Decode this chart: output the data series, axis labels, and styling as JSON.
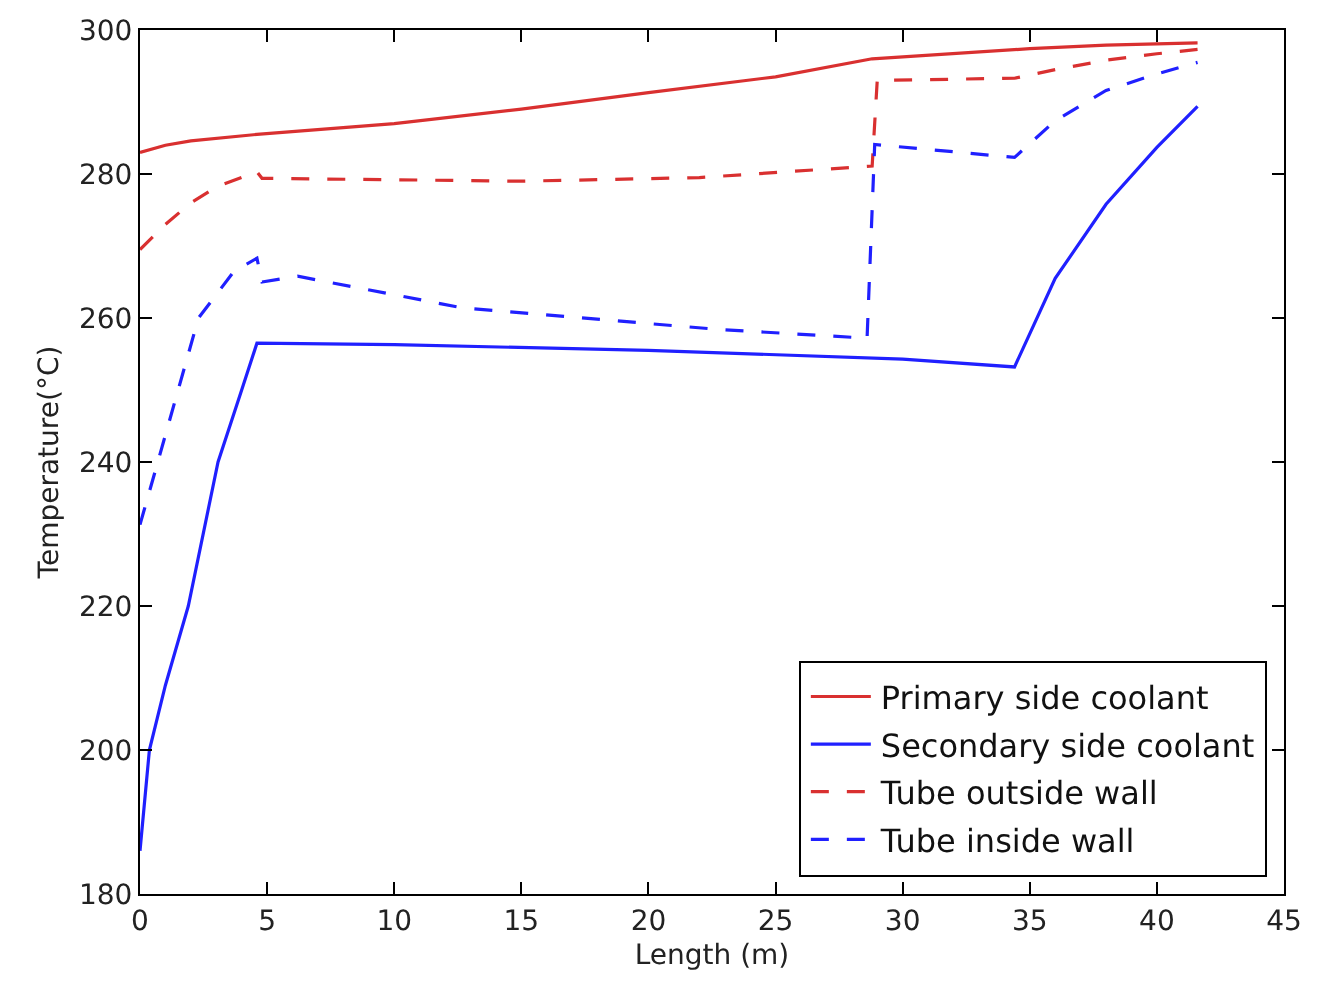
{
  "chart_data": {
    "type": "line",
    "xlabel": "Length (m)",
    "ylabel": "Temperature(°C)",
    "xlim": [
      0,
      45
    ],
    "ylim": [
      180,
      300
    ],
    "xticks": [
      0,
      5,
      10,
      15,
      20,
      25,
      30,
      35,
      40,
      45
    ],
    "yticks": [
      180,
      200,
      220,
      240,
      260,
      280,
      300
    ],
    "legend": "bottom right",
    "marker": "none",
    "series": [
      {
        "name": "Primary side coolant",
        "color": "#d93030",
        "line_style": "solid",
        "x": [
          0,
          1,
          2,
          4.6,
          10,
          15,
          20,
          25,
          28.8,
          35,
          38,
          41.6
        ],
        "values": [
          283,
          284,
          284.6,
          285.5,
          287,
          289,
          291.3,
          293.5,
          296,
          297.4,
          297.9,
          298.2
        ]
      },
      {
        "name": "Secondary side coolant",
        "color": "#2020ff",
        "line_style": "solid",
        "x": [
          0,
          0.37,
          1,
          1.9,
          3.07,
          4,
          4.6,
          10,
          20,
          30,
          34.4,
          36,
          38,
          40,
          41.6
        ],
        "values": [
          186,
          200,
          209,
          220,
          240,
          250,
          256.5,
          256.3,
          255.5,
          254.3,
          253.2,
          265.5,
          275.8,
          283.7,
          289.4
        ]
      },
      {
        "name": "Tube outside wall",
        "color": "#d93030",
        "line_style": "dashed",
        "x": [
          0,
          1,
          2,
          3,
          4.6,
          4.8,
          10,
          15,
          22,
          28.8,
          29,
          34.4,
          36,
          38,
          40,
          41.6
        ],
        "values": [
          269.5,
          273,
          276,
          278.2,
          280.3,
          279.4,
          279.2,
          279,
          279.5,
          281.1,
          293,
          293.3,
          294.5,
          295.8,
          296.7,
          297.3
        ]
      },
      {
        "name": "Tube inside wall",
        "color": "#2020ff",
        "line_style": "dashed",
        "x": [
          0,
          0.7,
          2.3,
          3.7,
          4.6,
          4.8,
          6.2,
          12.7,
          22.8,
          28.6,
          28.9,
          34.4,
          36,
          38,
          40,
          41.6
        ],
        "values": [
          231.3,
          240,
          260,
          266.5,
          268.3,
          265,
          265.8,
          261.4,
          258.4,
          257.2,
          284.1,
          282.3,
          287.4,
          291.6,
          293.9,
          295.5
        ]
      }
    ]
  }
}
